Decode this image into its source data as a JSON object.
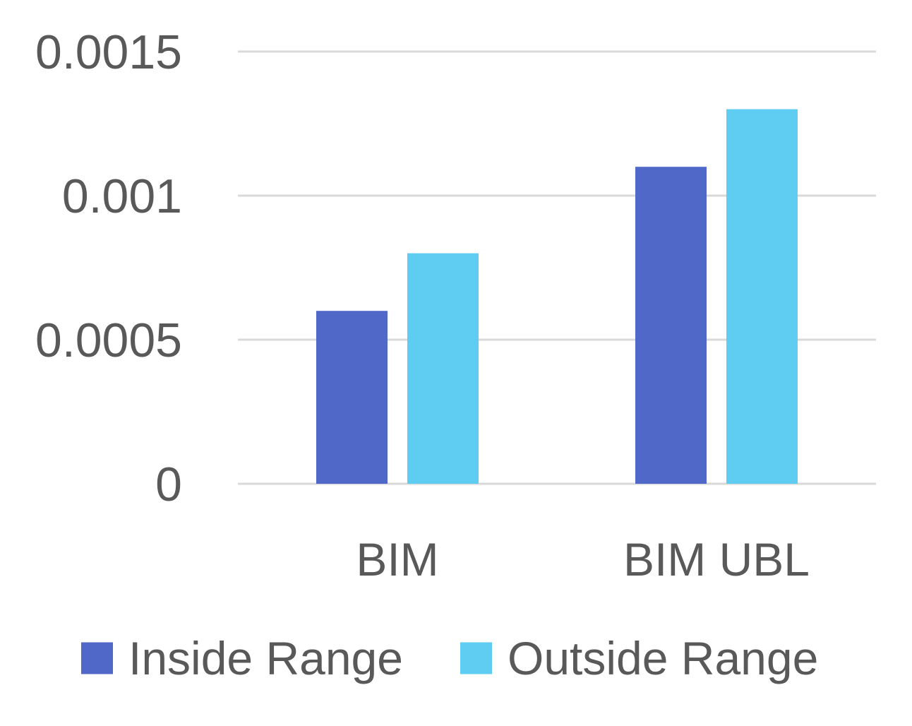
{
  "chart_data": {
    "type": "bar",
    "title": "",
    "xlabel": "",
    "ylabel": "",
    "categories": [
      "BIM",
      "BIM UBL"
    ],
    "series": [
      {
        "name": "Inside Range",
        "color": "#5068c8",
        "values": [
          0.0006,
          0.0011
        ]
      },
      {
        "name": "Outside Range",
        "color": "#5fcdf2",
        "values": [
          0.0008,
          0.0013
        ]
      }
    ],
    "ylim": [
      0,
      0.0015
    ],
    "yticks": [
      {
        "value": 0,
        "label": "0"
      },
      {
        "value": 0.0005,
        "label": "0.0005"
      },
      {
        "value": 0.001,
        "label": "0.001"
      },
      {
        "value": 0.0015,
        "label": "0.0015"
      }
    ],
    "grid": true,
    "legend_position": "bottom"
  }
}
